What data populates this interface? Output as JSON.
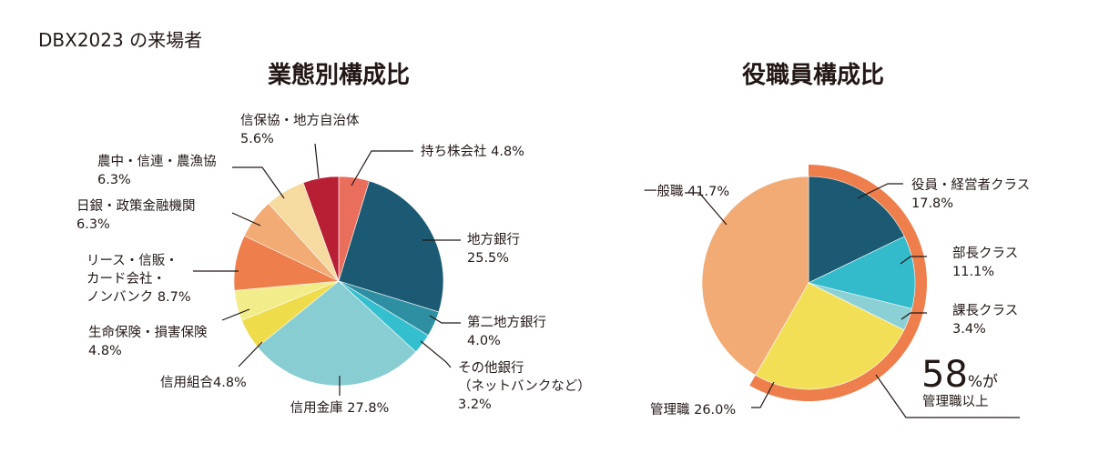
{
  "page_title": "DBX2023 の来場者",
  "chart_data": [
    {
      "type": "pie",
      "title": "業態別構成比",
      "start": "top (12 o'clock)",
      "direction": "clockwise",
      "slices": [
        {
          "key": "mochikabu",
          "label_lines": [
            "持ち株会社 4.8%"
          ],
          "value": 4.8,
          "color": "#EA6E5C"
        },
        {
          "key": "chiho",
          "label_lines": [
            "地方銀行",
            "25.5%"
          ],
          "value": 25.5,
          "color": "#1B5A72"
        },
        {
          "key": "daini",
          "label_lines": [
            "第二地方銀行",
            "4.0%"
          ],
          "value": 4.0,
          "color": "#2F8FA2"
        },
        {
          "key": "net",
          "label_lines": [
            "その他銀行",
            "（ネットバンクなど）",
            "3.2%"
          ],
          "value": 3.2,
          "color": "#33BFCE"
        },
        {
          "key": "shinkin",
          "label_lines": [
            "信用金庫 27.8%"
          ],
          "value": 27.8,
          "color": "#87CDD2"
        },
        {
          "key": "kumiai",
          "label_lines": [
            "信用組合4.8%"
          ],
          "value": 4.8,
          "color": "#EEDC4B"
        },
        {
          "key": "hoken",
          "label_lines": [
            "生命保険・損害保険",
            "4.8%"
          ],
          "value": 4.8,
          "color": "#F3EC8B"
        },
        {
          "key": "lease",
          "label_lines": [
            "リース・信販・",
            "カード会社・",
            "ノンバンク 8.7%"
          ],
          "value": 8.7,
          "color": "#EE7E4C"
        },
        {
          "key": "nichigin",
          "label_lines": [
            "日銀・政策金融機関",
            "6.3%"
          ],
          "value": 6.3,
          "color": "#F2AB74"
        },
        {
          "key": "nochu",
          "label_lines": [
            "農中・信連・農漁協",
            "6.3%"
          ],
          "value": 6.3,
          "color": "#F6DBA0"
        },
        {
          "key": "shinpo",
          "label_lines": [
            "信保協・地方自治体",
            "5.6%"
          ],
          "value": 5.6,
          "color": "#B81F35"
        }
      ]
    },
    {
      "type": "pie",
      "title": "役職員構成比",
      "start": "top (12 o'clock)",
      "direction": "clockwise",
      "slices": [
        {
          "key": "yakuin",
          "label_lines": [
            "役員・経営者クラス",
            "17.8%"
          ],
          "value": 17.8,
          "color": "#1B5A72"
        },
        {
          "key": "bucho",
          "label_lines": [
            "部長クラス",
            "11.1%"
          ],
          "value": 11.1,
          "color": "#33BACB"
        },
        {
          "key": "kacho",
          "label_lines": [
            "課長クラス",
            "3.4%"
          ],
          "value": 3.4,
          "color": "#8BD0D4"
        },
        {
          "key": "kanri",
          "label_lines": [
            "管理職 26.0%"
          ],
          "value": 26.0,
          "color": "#F2DF55"
        },
        {
          "key": "ippan",
          "label_lines": [
            "一般職 41.7%"
          ],
          "value": 41.7,
          "color": "#F2AB74"
        }
      ],
      "highlight": {
        "percent": "58",
        "percent_suffix": "%が",
        "caption": "管理職以上",
        "ring_color": "#EE7E4C"
      }
    }
  ]
}
